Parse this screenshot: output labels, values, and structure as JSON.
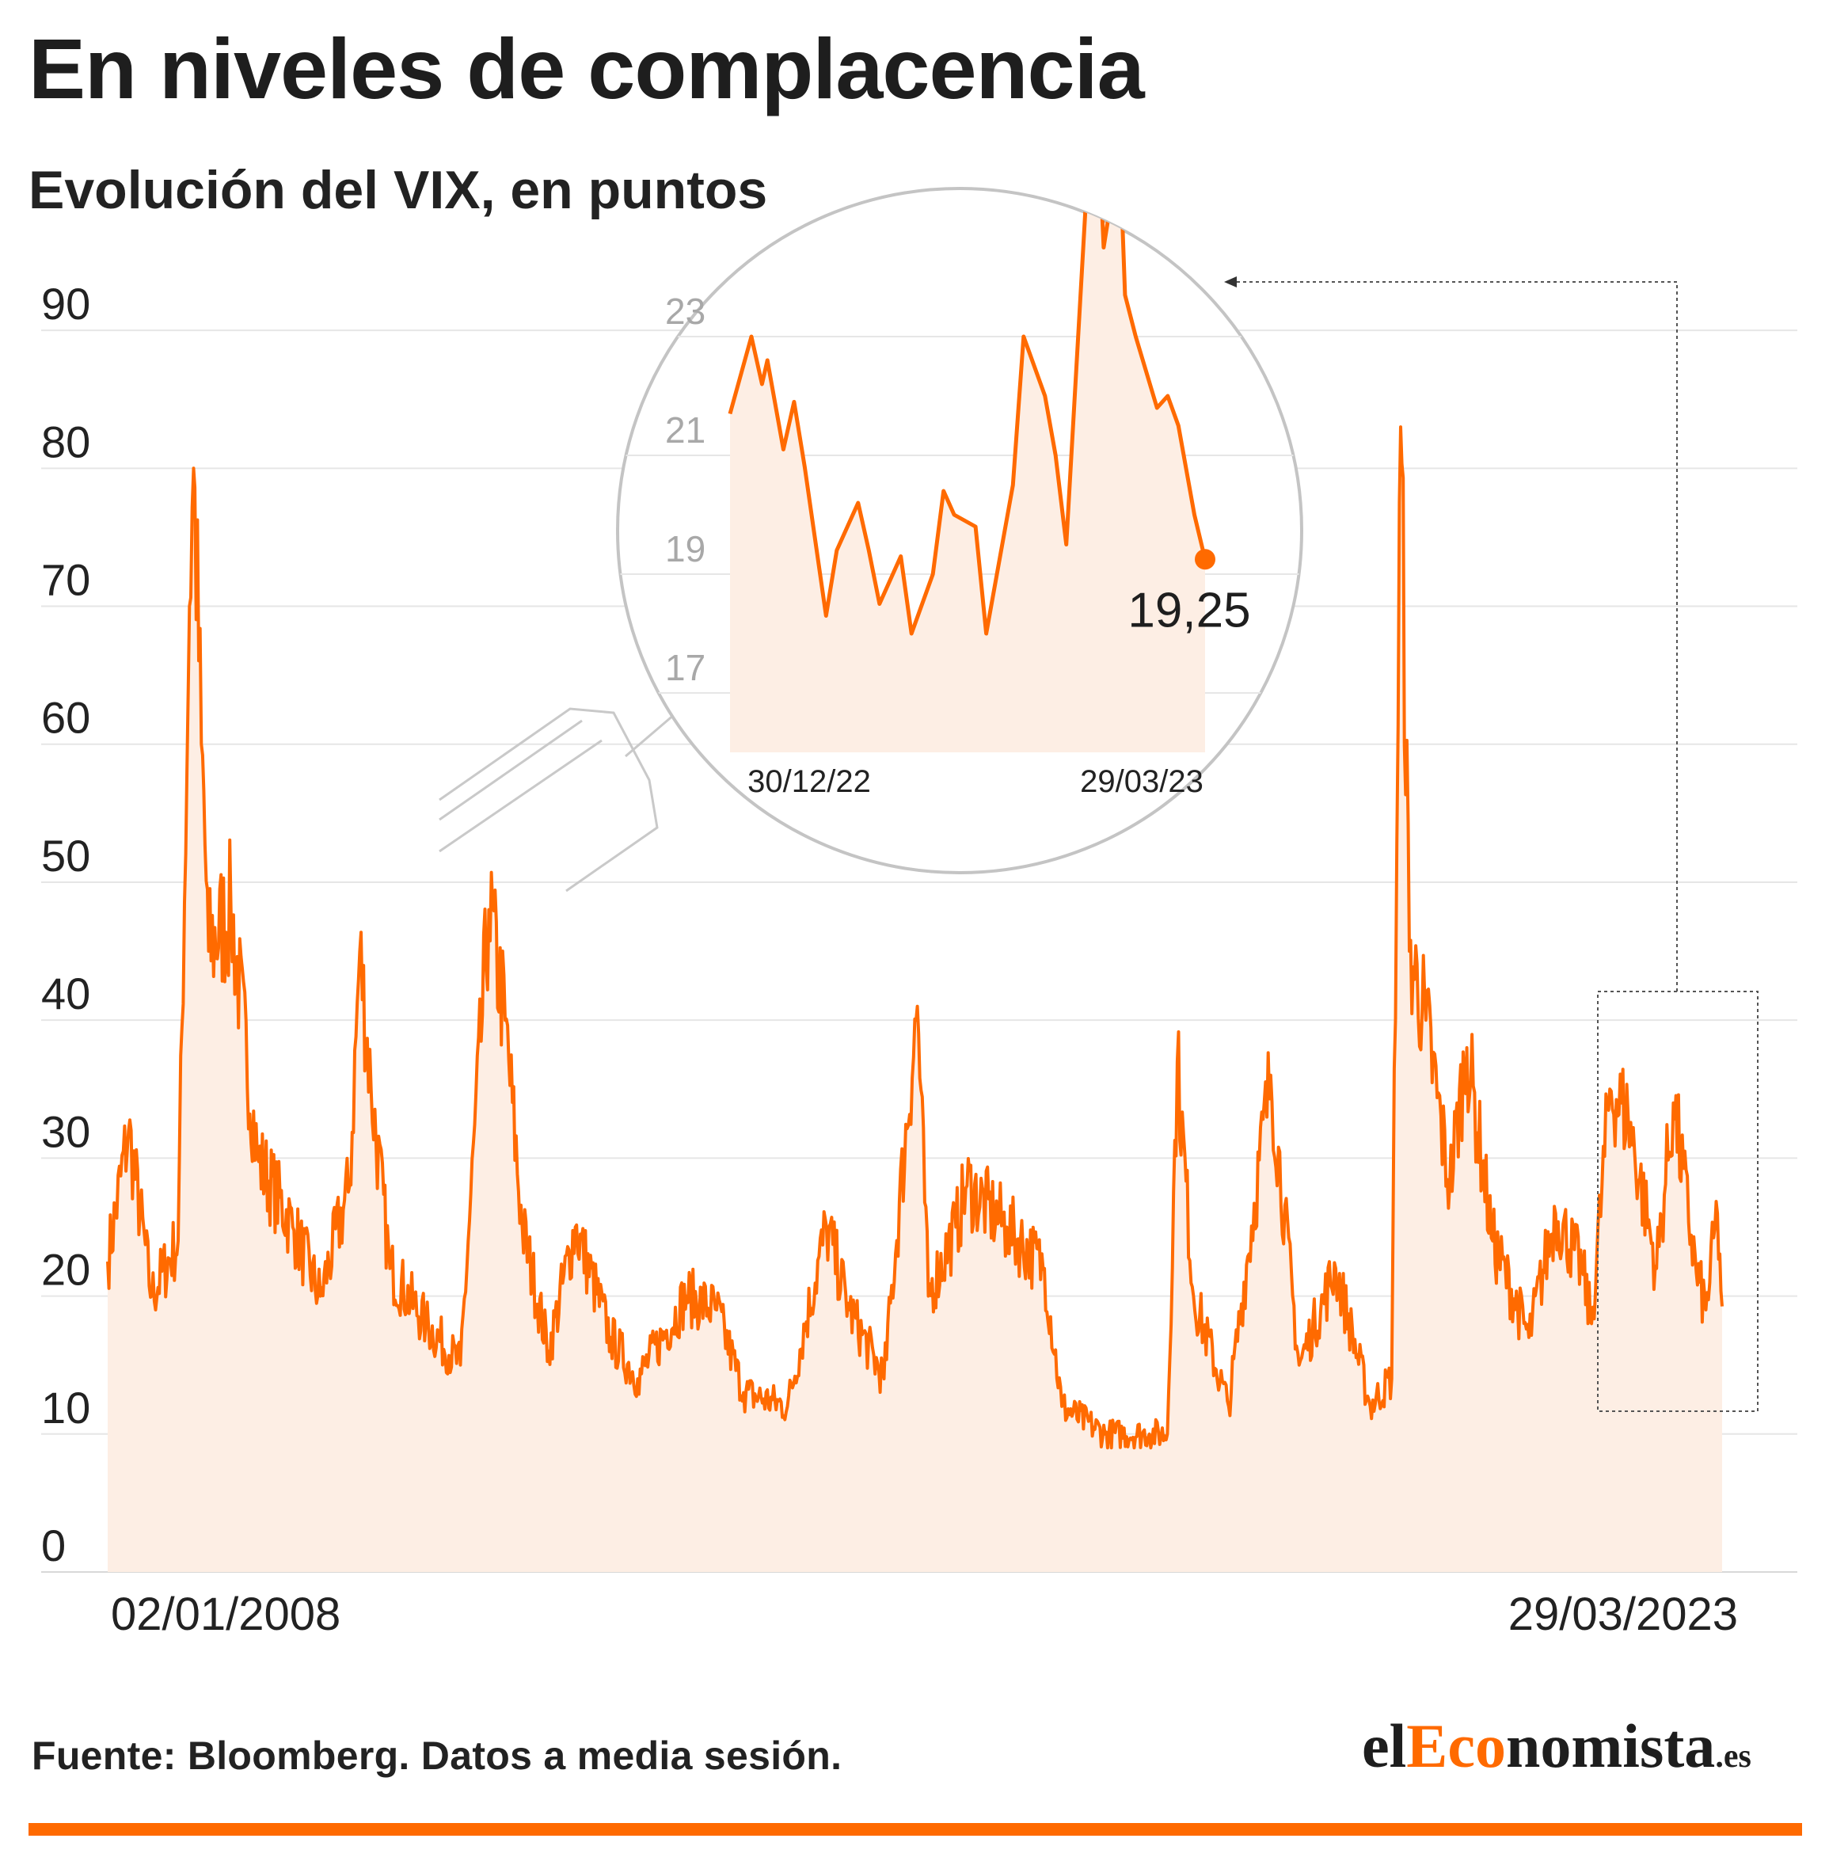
{
  "title": "En niveles de complacencia",
  "subtitle": "Evolución del VIX, en puntos",
  "source": "Fuente: Bloomberg. Datos a media sesión.",
  "brand": {
    "prefix": "el",
    "accent": "Eco",
    "suffix": "nomista",
    "tld": ".es"
  },
  "colors": {
    "line": "#ff6a00",
    "fill": "#fdeee4",
    "accent": "#ff6a00"
  },
  "chart_data": [
    {
      "type": "area",
      "title": "",
      "xlabel": "",
      "ylabel": "",
      "ylim": [
        0,
        95
      ],
      "yticks": [
        0,
        10,
        20,
        30,
        40,
        50,
        60,
        70,
        80,
        90
      ],
      "xtick_labels": [
        "02/01/2008",
        "29/03/2023"
      ],
      "grid": true,
      "series": [
        {
          "x": [
            "2008-01-02",
            "2008-03-14",
            "2008-06-02",
            "2008-09-01",
            "2008-10-10",
            "2008-10-24",
            "2008-11-20",
            "2008-12-15",
            "2009-03-02",
            "2009-06-01",
            "2009-10-01",
            "2010-01-04",
            "2010-04-15",
            "2010-05-20",
            "2010-06-28",
            "2010-09-01",
            "2011-01-03",
            "2011-05-02",
            "2011-08-08",
            "2011-10-03",
            "2011-12-01",
            "2012-03-01",
            "2012-06-01",
            "2012-10-01",
            "2013-01-02",
            "2013-06-20",
            "2013-10-01",
            "2014-01-02",
            "2014-06-02",
            "2014-10-15",
            "2015-01-02",
            "2015-05-01",
            "2015-08-24",
            "2015-10-01",
            "2016-01-04",
            "2016-02-11",
            "2016-06-27",
            "2016-11-04",
            "2017-01-03",
            "2017-06-01",
            "2017-11-01",
            "2018-01-02",
            "2018-02-05",
            "2018-04-02",
            "2018-08-01",
            "2018-12-24",
            "2019-04-01",
            "2019-08-05",
            "2019-12-02",
            "2020-02-14",
            "2020-03-16",
            "2020-04-15",
            "2020-06-11",
            "2020-09-01",
            "2020-10-30",
            "2021-01-27",
            "2021-06-01",
            "2021-09-01",
            "2021-12-01",
            "2022-01-03",
            "2022-03-07",
            "2022-05-09",
            "2022-08-15",
            "2022-10-12",
            "2022-12-30",
            "2023-02-01",
            "2023-03-13",
            "2023-03-29"
          ],
          "values": [
            22.5,
            32,
            20,
            24,
            70,
            80,
            60,
            45,
            48,
            30,
            25,
            20,
            28,
            45,
            35,
            22,
            18,
            15,
            48,
            40,
            25,
            16,
            25,
            17,
            14,
            20,
            19,
            13,
            12,
            25,
            19,
            14,
            41,
            20,
            25,
            28,
            25,
            22,
            12,
            10,
            10,
            10,
            37,
            20,
            12,
            36,
            15,
            22,
            12,
            14,
            83,
            45,
            40,
            28,
            38,
            24,
            17,
            26,
            22,
            18,
            35,
            33,
            22,
            34,
            21.7,
            19,
            26,
            19.25
          ]
        }
      ]
    },
    {
      "type": "line",
      "title": "",
      "xlabel": "",
      "ylabel": "",
      "ylim": [
        16,
        24
      ],
      "yticks": [
        17,
        19,
        21,
        23
      ],
      "xtick_labels": [
        "30/12/22",
        "29/03/23"
      ],
      "last_value_label": "19,25",
      "series": [
        {
          "x": [
            "2022-12-30",
            "2023-01-03",
            "2023-01-05",
            "2023-01-06",
            "2023-01-09",
            "2023-01-11",
            "2023-01-13",
            "2023-01-17",
            "2023-01-19",
            "2023-01-23",
            "2023-01-25",
            "2023-01-27",
            "2023-01-31",
            "2023-02-02",
            "2023-02-06",
            "2023-02-08",
            "2023-02-10",
            "2023-02-14",
            "2023-02-16",
            "2023-02-21",
            "2023-02-23",
            "2023-02-27",
            "2023-03-01",
            "2023-03-03",
            "2023-03-07",
            "2023-03-09",
            "2023-03-10",
            "2023-03-13",
            "2023-03-14",
            "2023-03-16",
            "2023-03-20",
            "2023-03-22",
            "2023-03-24",
            "2023-03-27",
            "2023-03-29"
          ],
          "values": [
            21.7,
            23.0,
            22.2,
            22.6,
            21.1,
            21.9,
            20.8,
            18.3,
            19.4,
            20.2,
            19.4,
            18.5,
            19.3,
            18.0,
            19.0,
            20.4,
            20.0,
            19.8,
            18.0,
            20.5,
            23.0,
            22.0,
            21.0,
            19.5,
            25.8,
            26.5,
            24.5,
            26.2,
            23.7,
            23.0,
            21.8,
            22.0,
            21.5,
            20.0,
            19.25
          ]
        }
      ]
    }
  ]
}
